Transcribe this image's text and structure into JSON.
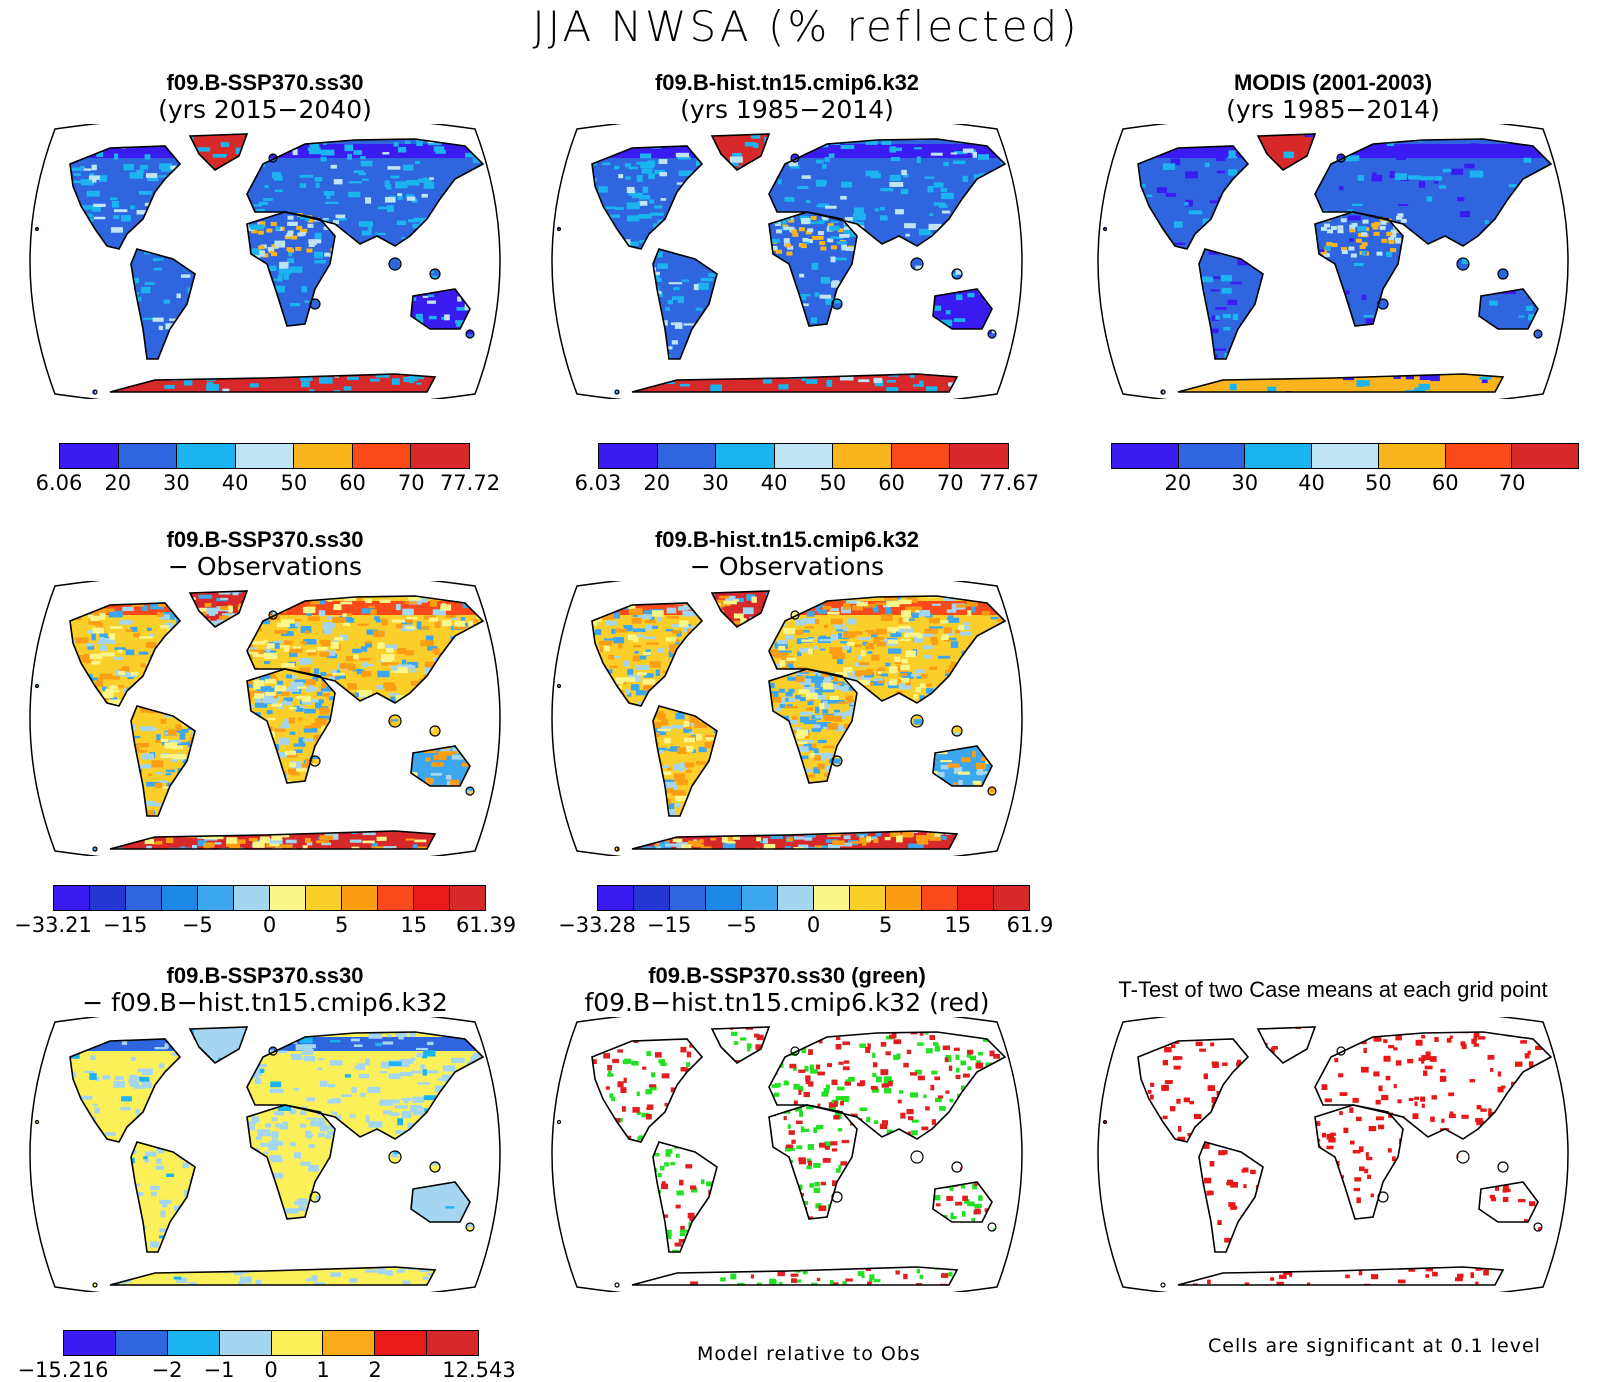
{
  "title": "JJA NWSA (% reflected)",
  "panels": [
    {
      "id": "p1",
      "line1": "f09.B-SSP370.ss30",
      "line2": "(yrs 2015−2040)",
      "kind": "albedo-model"
    },
    {
      "id": "p2",
      "line1": "f09.B-hist.tn15.cmip6.k32",
      "line2": "(yrs 1985−2014)",
      "kind": "albedo-model"
    },
    {
      "id": "p3",
      "line1": "MODIS (2001-2003)",
      "line2": "(yrs 1985−2014)",
      "kind": "albedo-obs"
    },
    {
      "id": "p4",
      "line1": "f09.B-SSP370.ss30",
      "line2": "− Observations",
      "kind": "diff-obs"
    },
    {
      "id": "p5",
      "line1": "f09.B-hist.tn15.cmip6.k32",
      "line2": "− Observations",
      "kind": "diff-obs"
    },
    {
      "id": "p7",
      "line1": "f09.B-SSP370.ss30",
      "line2": "− f09.B−hist.tn15.cmip6.k32",
      "kind": "diff-case"
    },
    {
      "id": "p8",
      "line1": "f09.B-SSP370.ss30 (green)",
      "line2": "f09.B−hist.tn15.cmip6.k32 (red)",
      "kind": "green-red"
    },
    {
      "id": "p9",
      "line1": "T-Test of two Case means at each grid point",
      "line2": "",
      "kind": "ttest"
    }
  ],
  "colorbars": {
    "albedo": {
      "colors": [
        "#3a1cf0",
        "#2f66e0",
        "#1cb4f0",
        "#bfe4f4",
        "#fab51e",
        "#fa4a1a",
        "#d7282a"
      ],
      "cb1_labels": [
        "6.06",
        "20",
        "30",
        "40",
        "50",
        "60",
        "70",
        "77.72"
      ],
      "cb2_labels": [
        "6.03",
        "20",
        "30",
        "40",
        "50",
        "60",
        "70",
        "77.67"
      ],
      "cb3_labels": [
        "20",
        "30",
        "40",
        "50",
        "60",
        "70"
      ]
    },
    "diffobs": {
      "colors": [
        "#3a1cf0",
        "#2437d4",
        "#2f66e0",
        "#1c88e8",
        "#3ca6ee",
        "#a4d6f2",
        "#fbf68a",
        "#fbcf2a",
        "#fb9e14",
        "#fa4a1a",
        "#ea1a1a",
        "#d7282a"
      ],
      "cb4_labels": [
        "−33.21",
        "−15",
        "−5",
        "0",
        "5",
        "15",
        "61.39"
      ],
      "cb5_labels": [
        "−33.28",
        "−15",
        "−5",
        "0",
        "5",
        "15",
        "61.9"
      ]
    },
    "diffcase": {
      "colors": [
        "#3a1cf0",
        "#2f66e0",
        "#1cb4f0",
        "#a4d6f2",
        "#fbf05a",
        "#fbaa1a",
        "#ea1a1a",
        "#d7282a"
      ],
      "cb7_labels": [
        "−15.216",
        "−2",
        "−1",
        "0",
        "1",
        "2",
        "12.543"
      ]
    }
  },
  "footnotes": {
    "model_relative": "Model relative to Obs",
    "cells_significant": "Cells are significant at 0.1 level"
  }
}
